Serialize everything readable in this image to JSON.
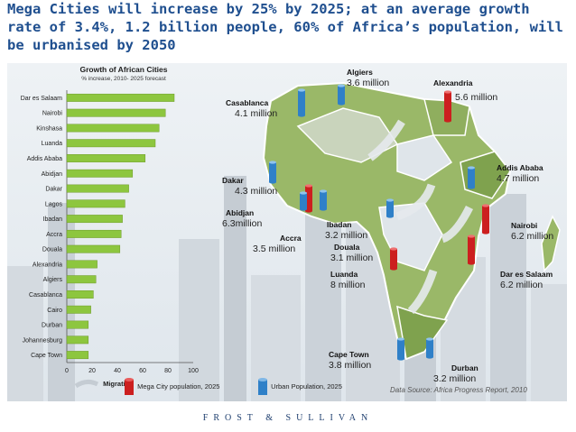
{
  "headline": "Mega  Cities will increase by 25% by 2025; at an average growth rate of 3.4%, 1.2 billion people, 60% of Africa’s population, will be urbanised by 2050",
  "chart_data": {
    "type": "bar",
    "orientation": "horizontal",
    "title": "Growth of African Cities",
    "subtitle": "% increase, 2010- 2025 forecast",
    "categories": [
      "Dar es Salaam",
      "Nairobi",
      "Kinshasa",
      "Luanda",
      "Addis Ababa",
      "Abidjan",
      "Dakar",
      "Lagos",
      "Ibadan",
      "Accra",
      "Douala",
      "Alexandria",
      "Algiers",
      "Casablanca",
      "Cairo",
      "Durban",
      "Johannesburg",
      "Cape Town"
    ],
    "values": [
      85,
      78,
      73,
      70,
      62,
      52,
      49,
      46,
      44,
      43,
      42,
      24,
      23,
      21,
      19,
      17,
      17,
      17
    ],
    "xlim": [
      0,
      100
    ],
    "xticks": [
      "0",
      "20",
      "40",
      "60",
      "80",
      "100"
    ],
    "bar_color": "#8dc63f",
    "grid": false
  },
  "cities": [
    {
      "name": "Algiers",
      "pop": "3.6 million",
      "type": "urban"
    },
    {
      "name": "Alexandria",
      "pop": "5.6 million",
      "type": "mega"
    },
    {
      "name": "Casablanca",
      "pop": "4.1 million",
      "type": "urban"
    },
    {
      "name": "Addis Ababa",
      "pop": "4.7 million",
      "type": "urban"
    },
    {
      "name": "Dakar",
      "pop": "4.3 million",
      "type": "urban"
    },
    {
      "name": "Abidjan",
      "pop": "6.3million",
      "type": "mega"
    },
    {
      "name": "Ibadan",
      "pop": "3.2 million",
      "type": "urban"
    },
    {
      "name": "Accra",
      "pop": "3.5 million",
      "type": "urban"
    },
    {
      "name": "Nairobi",
      "pop": "6.2 million",
      "type": "mega"
    },
    {
      "name": "Douala",
      "pop": "3.1 million",
      "type": "urban"
    },
    {
      "name": "Luanda",
      "pop": "8 million",
      "type": "mega"
    },
    {
      "name": "Dar es Salaam",
      "pop": "6.2 million",
      "type": "mega"
    },
    {
      "name": "Cape Town",
      "pop": "3.8 million",
      "type": "urban"
    },
    {
      "name": "Durban",
      "pop": "3.2 million",
      "type": "urban"
    }
  ],
  "legend": {
    "migration": "Migration",
    "mega": "Mega City population, 2025",
    "urban": "Urban Population, 2025"
  },
  "colors": {
    "mega": "#cc1f1f",
    "urban": "#2f80c8",
    "map": "#8fae5e",
    "bars": "#8dc63f"
  },
  "source": "Data Source: Africa Progress Report, 2010",
  "footer": "FROST & SULLIVAN"
}
